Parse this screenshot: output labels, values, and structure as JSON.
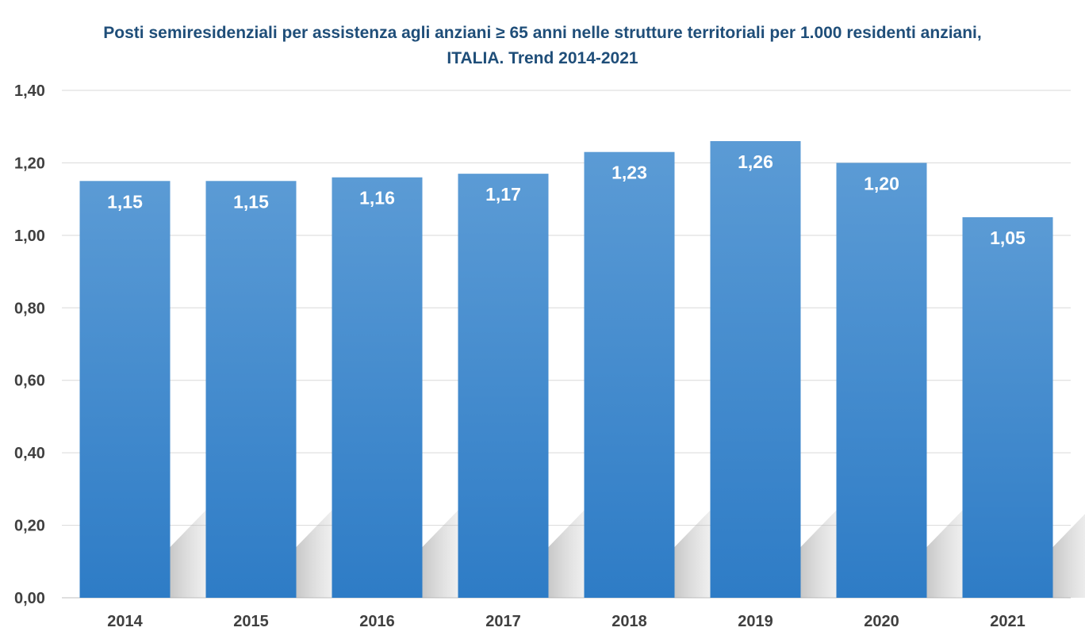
{
  "chart_data": {
    "type": "bar",
    "title": "Posti semiresidenziali per assistenza agli anziani ≥ 65 anni nelle strutture territoriali per 1.000 residenti anziani,",
    "subtitle": "ITALIA. Trend 2014-2021",
    "categories": [
      "2014",
      "2015",
      "2016",
      "2017",
      "2018",
      "2019",
      "2020",
      "2021"
    ],
    "values": [
      1.15,
      1.15,
      1.16,
      1.17,
      1.23,
      1.26,
      1.2,
      1.05
    ],
    "data_labels": [
      "1,15",
      "1,15",
      "1,16",
      "1,17",
      "1,23",
      "1,26",
      "1,20",
      "1,05"
    ],
    "ylim": [
      0,
      1.4
    ],
    "yticks": [
      0,
      0.2,
      0.4,
      0.6,
      0.8,
      1.0,
      1.2,
      1.4
    ],
    "ytick_labels": [
      "0,00",
      "0,20",
      "0,40",
      "0,60",
      "0,80",
      "1,00",
      "1,20",
      "1,40"
    ],
    "grid": true,
    "colors": {
      "bar_top": "#5b9bd5",
      "bar_bottom": "#2e7cc6",
      "title": "#1f4e79"
    }
  }
}
